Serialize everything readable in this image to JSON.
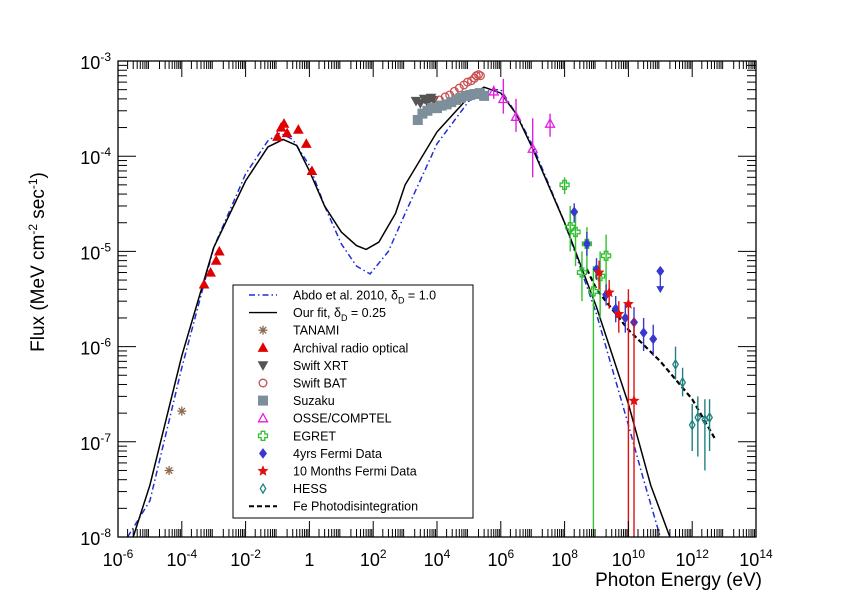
{
  "chart_data": {
    "type": "scatter",
    "title": "",
    "xlabel": "Photon Energy (eV)",
    "ylabel": "Flux (MeV cm^-2 sec^-1)",
    "xscale": "log",
    "yscale": "log",
    "xlim": [
      1e-06,
      100000000000000.0
    ],
    "ylim": [
      1e-08,
      0.001
    ],
    "xticks": [
      {
        "v": 1e-06,
        "mantissa": "10",
        "exp": "-6"
      },
      {
        "v": 0.0001,
        "mantissa": "10",
        "exp": "-4"
      },
      {
        "v": 0.01,
        "mantissa": "10",
        "exp": "-2"
      },
      {
        "v": 1,
        "mantissa": "1",
        "exp": ""
      },
      {
        "v": 100.0,
        "mantissa": "10",
        "exp": "2"
      },
      {
        "v": 10000.0,
        "mantissa": "10",
        "exp": "4"
      },
      {
        "v": 1000000.0,
        "mantissa": "10",
        "exp": "6"
      },
      {
        "v": 100000000.0,
        "mantissa": "10",
        "exp": "8"
      },
      {
        "v": 10000000000.0,
        "mantissa": "10",
        "exp": "10"
      },
      {
        "v": 1000000000000.0,
        "mantissa": "10",
        "exp": "12"
      },
      {
        "v": 100000000000000.0,
        "mantissa": "10",
        "exp": "14"
      }
    ],
    "yticks": [
      {
        "v": 1e-08,
        "mantissa": "10",
        "exp": "-8"
      },
      {
        "v": 1e-07,
        "mantissa": "10",
        "exp": "-7"
      },
      {
        "v": 1e-06,
        "mantissa": "10",
        "exp": "-6"
      },
      {
        "v": 1e-05,
        "mantissa": "10",
        "exp": "-5"
      },
      {
        "v": 0.0001,
        "mantissa": "10",
        "exp": "-4"
      },
      {
        "v": 0.001,
        "mantissa": "10",
        "exp": "-3"
      }
    ],
    "legend_position": "bottom-left",
    "series": [
      {
        "name": "Abdo et al. 2010, δD = 1.0",
        "kind": "line",
        "style": "dashdot",
        "color": "#1f2fd8",
        "x": [
          2e-06,
          1e-05,
          0.0001,
          0.001,
          0.01,
          0.05,
          0.12,
          0.3,
          1,
          3,
          10,
          30,
          80,
          300,
          1000.0,
          10000.0,
          100000.0,
          500000.0,
          1000000.0,
          3000000.0,
          10000000.0,
          100000000.0,
          1000000000.0,
          10000000000.0,
          30000000000.0,
          100000000000.0
        ],
        "y": [
          1e-08,
          2.4e-08,
          6e-07,
          1.1e-05,
          6.5e-05,
          0.000145,
          0.000175,
          0.00015,
          8e-05,
          3e-05,
          1.2e-05,
          7e-06,
          5.8e-06,
          1e-05,
          2.5e-05,
          0.000135,
          0.00038,
          0.0005,
          0.0005,
          0.00028,
          0.00013,
          2e-05,
          2.2e-06,
          1.5e-07,
          4e-08,
          1e-08
        ]
      },
      {
        "name": "Our fit, δD = 0.25",
        "kind": "line",
        "style": "solid",
        "color": "#000000",
        "x": [
          3e-06,
          1e-05,
          0.0001,
          0.001,
          0.01,
          0.05,
          0.15,
          0.4,
          1,
          3,
          10,
          30,
          60,
          150,
          500,
          1000.0,
          10000.0,
          100000.0,
          300000.0,
          1000000.0,
          3000000.0,
          10000000.0,
          100000000.0,
          1000000000.0,
          10000000000.0,
          50000000000.0,
          200000000000.0
        ],
        "y": [
          1e-08,
          3.5e-08,
          8e-07,
          1.1e-05,
          5.5e-05,
          0.000125,
          0.00015,
          0.00013,
          7e-05,
          3e-05,
          1.6e-05,
          1.15e-05,
          1.05e-05,
          1.25e-05,
          2.5e-05,
          5e-05,
          0.00018,
          0.00042,
          0.00053,
          0.00046,
          0.00028,
          0.00012,
          2e-05,
          2.6e-06,
          2.5e-07,
          3.5e-08,
          1e-08
        ]
      },
      {
        "name": "TANAMI",
        "kind": "points",
        "marker": "asterisk",
        "color": "#8b6a50",
        "x": [
          4e-05,
          0.0001
        ],
        "y": [
          5e-08,
          2.1e-07
        ]
      },
      {
        "name": "Archival radio optical",
        "kind": "points",
        "marker": "triangle-filled",
        "color": "#e00000",
        "x": [
          0.0005,
          0.0008,
          0.0012,
          0.0015,
          0.1,
          0.13,
          0.16,
          0.2,
          0.45,
          0.8,
          1.2
        ],
        "y": [
          4.5e-06,
          6e-06,
          8e-06,
          1e-05,
          0.00016,
          0.0002,
          0.00022,
          0.000175,
          0.00019,
          0.000135,
          7e-05
        ]
      },
      {
        "name": "Swift XRT",
        "kind": "points",
        "marker": "triangle-down-filled",
        "color": "#555555",
        "x": [
          2200.0,
          3000.0,
          4000.0,
          5000.0,
          6500.0,
          8000.0
        ],
        "y": [
          0.00038,
          0.00036,
          0.0004,
          0.00037,
          0.00041,
          0.00039
        ]
      },
      {
        "name": "Swift BAT",
        "kind": "points",
        "marker": "circle-open",
        "color": "#c85050",
        "x": [
          12000.0,
          18000.0,
          25000.0,
          35000.0,
          50000.0,
          70000.0,
          90000.0,
          120000.0,
          150000.0,
          170000.0,
          200000.0,
          230000.0
        ],
        "y": [
          0.00039,
          0.00042,
          0.00044,
          0.00048,
          0.00052,
          0.00056,
          0.0006,
          0.00062,
          0.00066,
          0.0007,
          0.00072,
          0.0007
        ]
      },
      {
        "name": "Suzaku",
        "kind": "points",
        "marker": "square-filled",
        "color": "#7d8f9a",
        "x": [
          2500.0,
          3500.0,
          5000.0,
          7000.0,
          10000.0,
          14000.0,
          20000.0,
          28000.0,
          40000.0,
          55000.0,
          80000.0,
          110000.0,
          150000.0,
          220000.0,
          300000.0
        ],
        "y": [
          0.00024,
          0.00028,
          0.0003,
          0.00032,
          0.00032,
          0.00034,
          0.00035,
          0.00037,
          0.00039,
          0.00041,
          0.00043,
          0.00044,
          0.00045,
          0.00046,
          0.00043
        ]
      },
      {
        "name": "OSSE/COMPTEL",
        "kind": "points",
        "marker": "triangle-open",
        "color": "#e020e0",
        "x": [
          600000.0,
          1200000.0,
          3000000.0,
          10000000.0,
          35000000.0
        ],
        "y": [
          0.00048,
          0.0004,
          0.00026,
          0.00012,
          0.00022
        ],
        "yerr_lo": [
          0.0004,
          0.00028,
          0.00018,
          6e-05,
          0.00016
        ],
        "yerr_hi": [
          0.00055,
          0.00065,
          0.0004,
          0.00025,
          0.00028
        ]
      },
      {
        "name": "EGRET",
        "kind": "points",
        "marker": "cross-open",
        "color": "#30c030",
        "x": [
          100000000.0,
          150000000.0,
          220000000.0,
          350000000.0,
          500000000.0,
          800000000.0,
          1300000000.0,
          2000000000.0
        ],
        "y": [
          5e-05,
          1.8e-05,
          1.6e-05,
          6e-06,
          1.2e-05,
          3.8e-06,
          5.5e-06,
          9e-06
        ],
        "yerr_lo": [
          4e-05,
          1e-05,
          7e-06,
          3e-06,
          6e-06,
          1e-08,
          2e-06,
          3e-06
        ],
        "yerr_hi": [
          6e-05,
          3e-05,
          2.6e-05,
          1e-05,
          1.8e-05,
          7e-06,
          1e-05,
          1.5e-05
        ]
      },
      {
        "name": "4yrs Fermi Data",
        "kind": "points",
        "marker": "diamond-filled",
        "color": "#3838d0",
        "x": [
          200000000.0,
          500000000.0,
          1000000000.0,
          2000000000.0,
          4000000000.0,
          8000000000.0,
          15000000000.0,
          30000000000.0,
          60000000000.0
        ],
        "y": [
          2.6e-05,
          1.2e-05,
          6.5e-06,
          3.5e-06,
          2.5e-06,
          2e-06,
          1.8e-06,
          1.4e-06,
          1.2e-06
        ],
        "yerr_lo": [
          2e-05,
          9e-06,
          5e-06,
          2.7e-06,
          1.8e-06,
          1.4e-06,
          1.3e-06,
          9e-07,
          8e-07
        ],
        "yerr_hi": [
          3.2e-05,
          1.6e-05,
          8.5e-06,
          4.5e-06,
          3.4e-06,
          2.8e-06,
          2.6e-06,
          2e-06,
          1.7e-06
        ]
      },
      {
        "name": "4yrs Fermi upper limit",
        "kind": "points",
        "marker": "upper-limit",
        "color": "#3838d0",
        "x": [
          100000000000.0
        ],
        "y": [
          6.2e-06
        ]
      },
      {
        "name": "10 Months Fermi Data",
        "kind": "points",
        "marker": "star",
        "color": "#e01010",
        "x": [
          1200000000.0,
          2500000000.0,
          5000000000.0,
          10000000000.0,
          15000000000.0
        ],
        "y": [
          6e-06,
          3.7e-06,
          2.2e-06,
          2.8e-06,
          2.7e-07
        ],
        "yerr_lo": [
          4e-06,
          2.5e-06,
          1.4e-06,
          1e-08,
          1e-08
        ],
        "yerr_hi": [
          8e-06,
          5e-06,
          3e-06,
          4e-06,
          2e-06
        ]
      },
      {
        "name": "HESS",
        "kind": "points",
        "marker": "diamond-open",
        "color": "#208080",
        "x": [
          300000000000.0,
          500000000000.0,
          1000000000000.0,
          1500000000000.0,
          2500000000000.0,
          3500000000000.0
        ],
        "y": [
          6.5e-07,
          4.2e-07,
          1.5e-07,
          1.8e-07,
          1.7e-07,
          1.8e-07
        ],
        "yerr_lo": [
          4.5e-07,
          3e-07,
          8e-08,
          7e-08,
          5e-08,
          8e-08
        ],
        "yerr_hi": [
          1e-06,
          6e-07,
          2.5e-07,
          3e-07,
          2.8e-07,
          2.8e-07
        ]
      },
      {
        "name": "Fe Photodisintegration",
        "kind": "line",
        "style": "dashed",
        "color": "#000000",
        "x": [
          500000000.0,
          1000000000.0,
          10000000000.0,
          100000000000.0,
          1000000000000.0,
          5000000000000.0
        ],
        "y": [
          6.5e-06,
          4e-06,
          1.5e-06,
          7e-07,
          2.8e-07,
          1.1e-07
        ]
      }
    ]
  },
  "legend": {
    "entries": [
      {
        "label": "Abdo et al. 2010, δ",
        "sub": "D",
        "suffix": " = 1.0"
      },
      {
        "label": "Our fit, δ",
        "sub": "D",
        "suffix": " = 0.25"
      },
      {
        "label": "TANAMI"
      },
      {
        "label": "Archival radio optical"
      },
      {
        "label": "Swift XRT"
      },
      {
        "label": "Swift BAT"
      },
      {
        "label": "Suzaku"
      },
      {
        "label": "OSSE/COMPTEL"
      },
      {
        "label": "EGRET"
      },
      {
        "label": "4yrs Fermi Data"
      },
      {
        "label": "10 Months Fermi Data"
      },
      {
        "label": "HESS"
      },
      {
        "label": "Fe Photodisintegration"
      }
    ]
  },
  "axis_text": {
    "ylabel_main": "Flux (MeV cm",
    "ylabel_sup1": "-2",
    "ylabel_mid": " sec",
    "ylabel_sup2": "-1",
    "ylabel_end": ")",
    "xlabel": "Photon Energy (eV)"
  }
}
